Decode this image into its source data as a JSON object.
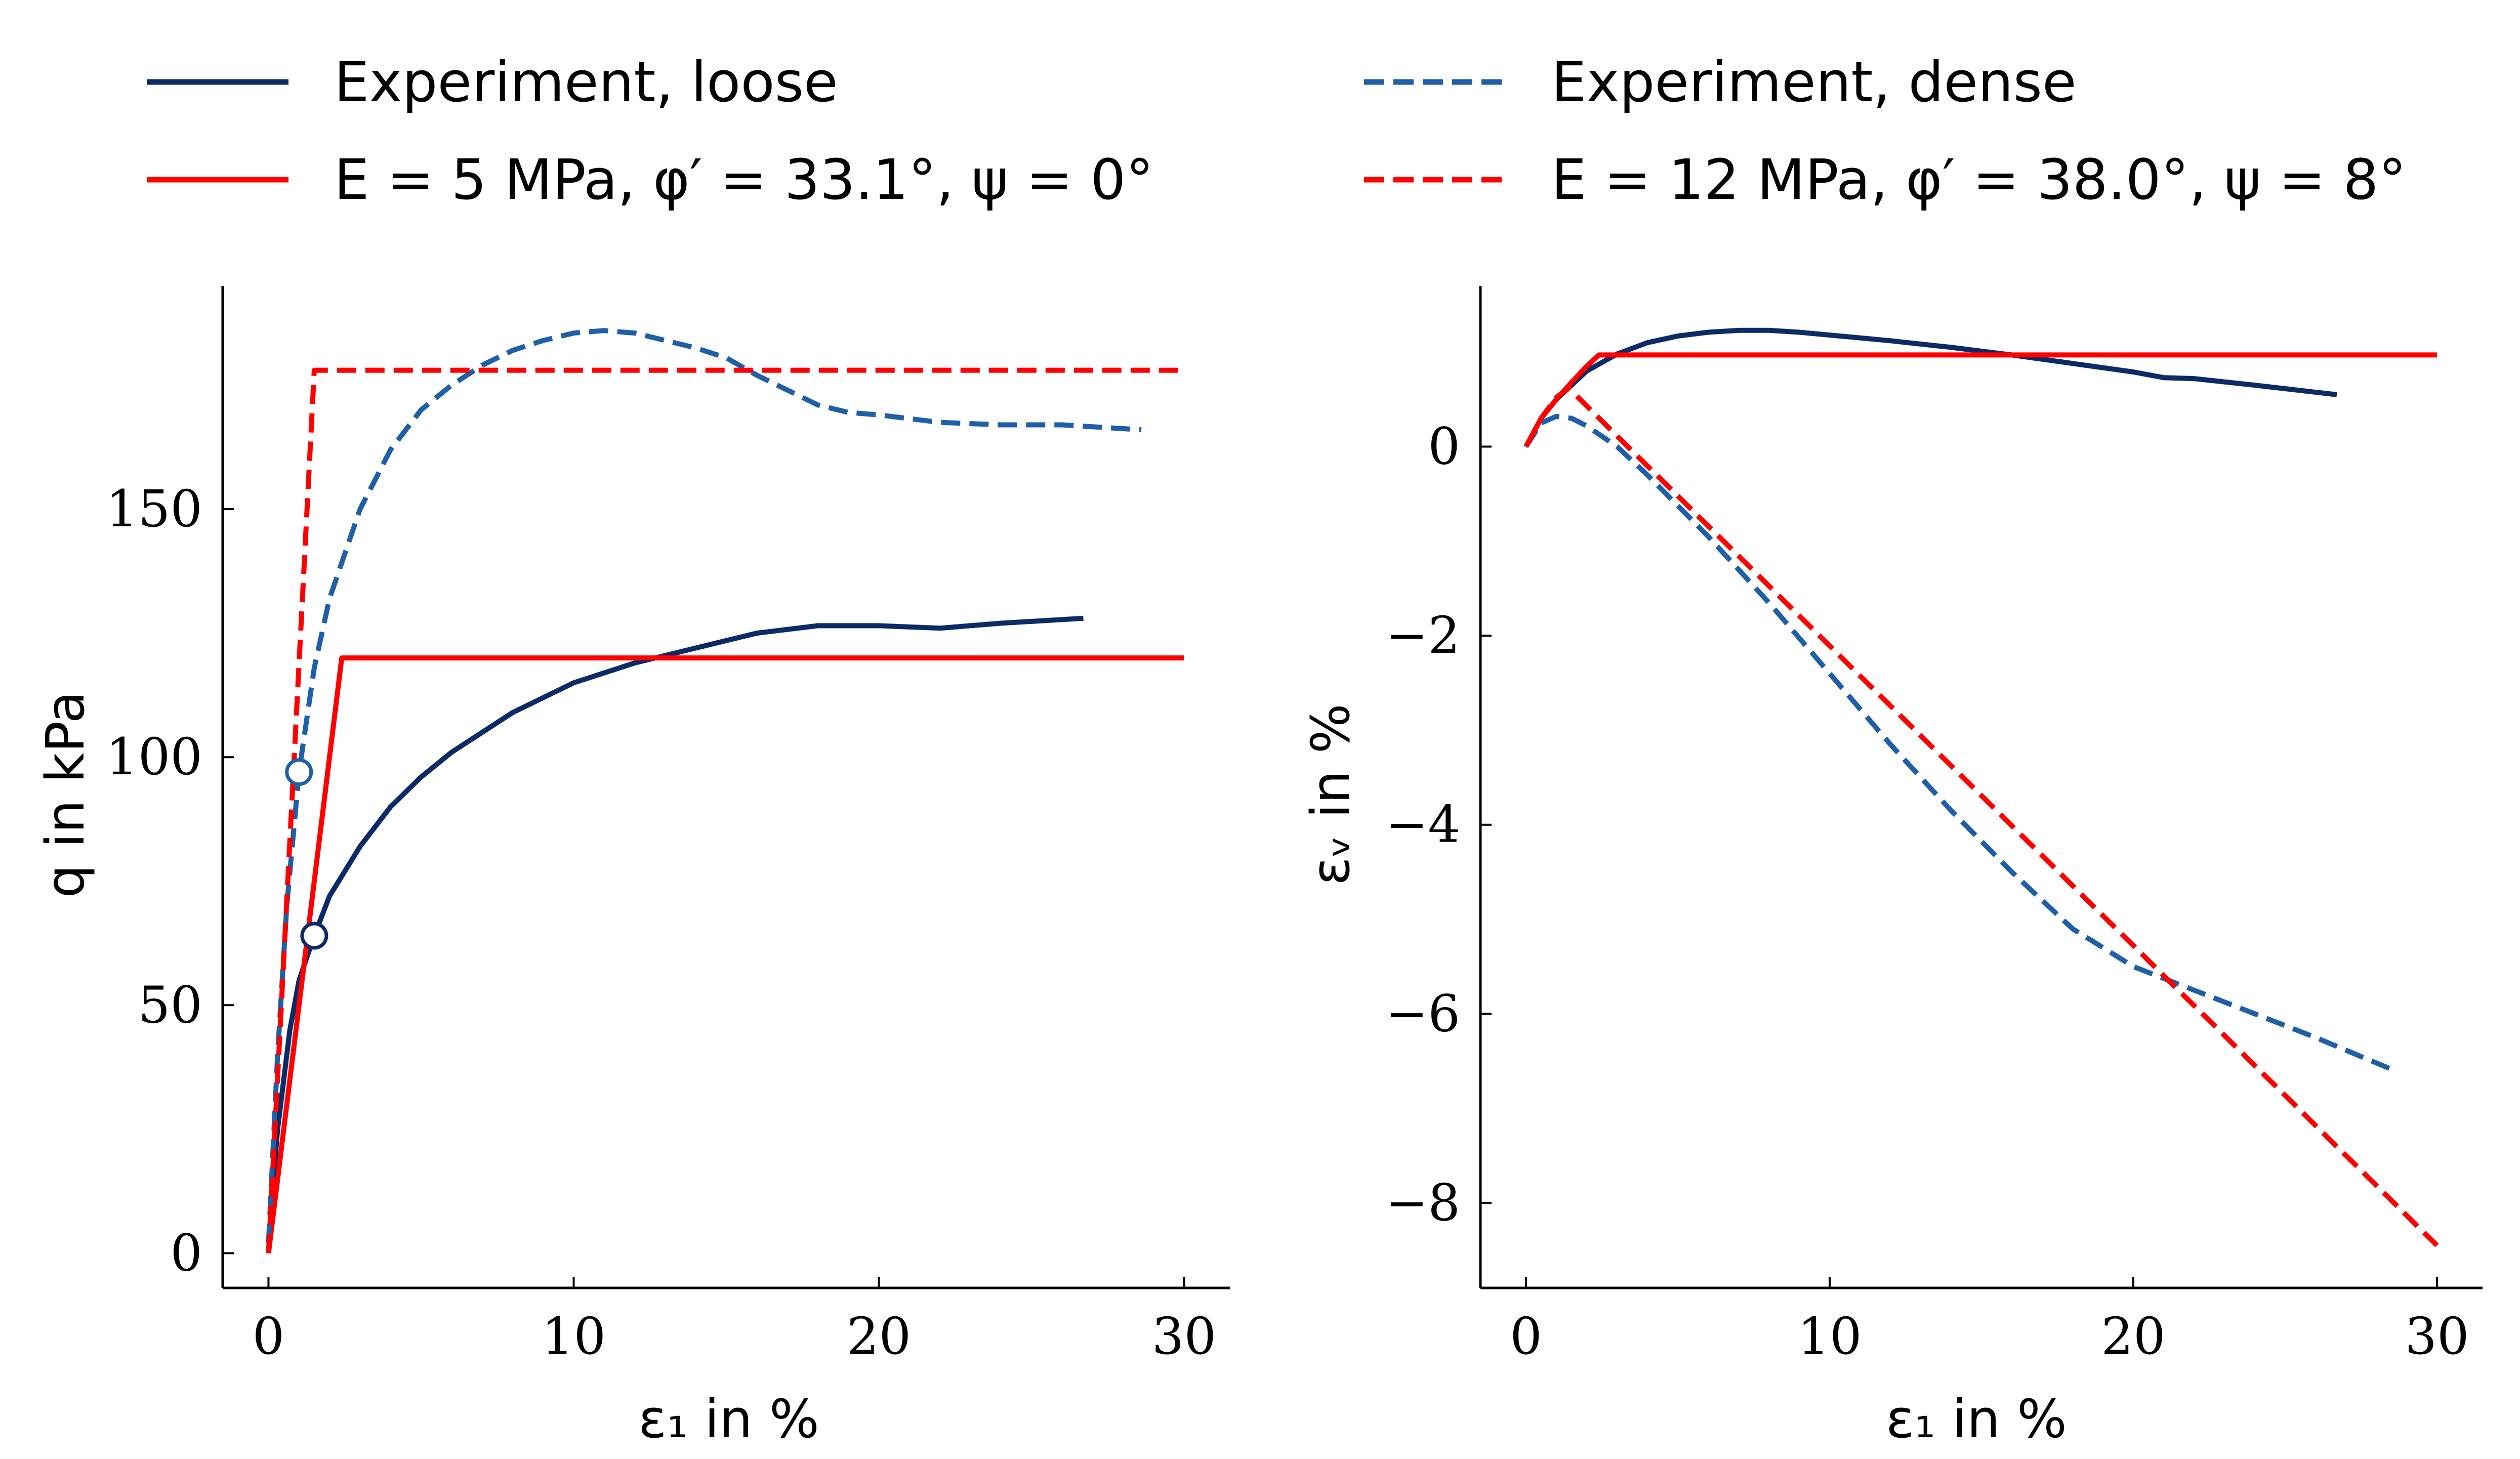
{
  "legend": {
    "entries": [
      {
        "label": "Experiment, loose",
        "color": "#0b2a66",
        "dash": "solid"
      },
      {
        "label": "E = 5 MPa, φ′ = 33.1°, ψ = 0°",
        "color": "#ff0000",
        "dash": "solid"
      },
      {
        "label": "Experiment, dense",
        "color": "#1f5fa8",
        "dash": "dashed"
      },
      {
        "label": "E = 12 MPa, φ′ = 38.0°, ψ = 8°",
        "color": "#ff0000",
        "dash": "dashed"
      }
    ]
  },
  "chart_data": [
    {
      "type": "line",
      "xlabel": "ε₁ in %",
      "ylabel": "q in kPa",
      "xlim": [
        -1.5,
        31.5
      ],
      "ylim": [
        -7,
        195
      ],
      "xticks": [
        "0",
        "10",
        "20",
        "30"
      ],
      "xtick_values": [
        0,
        10,
        20,
        30
      ],
      "yticks": [
        "0",
        "50",
        "100",
        "150"
      ],
      "ytick_values": [
        0,
        50,
        100,
        150
      ],
      "series": [
        {
          "name": "Experiment, loose",
          "color": "#0b2a66",
          "dash": "solid",
          "x": [
            0,
            0.3,
            0.7,
            1.0,
            1.5,
            2,
            3,
            4,
            5,
            6,
            8,
            10,
            12,
            14,
            16,
            18,
            20,
            22,
            24,
            26.7
          ],
          "y": [
            2,
            25,
            45,
            55,
            64,
            72,
            82,
            90,
            96,
            101,
            109,
            115,
            119,
            122,
            125,
            126.5,
            126.5,
            126,
            127,
            128
          ]
        },
        {
          "name": "E = 5 MPa, φ′ = 33.1°, ψ = 0°",
          "color": "#ff0000",
          "dash": "solid",
          "x": [
            0,
            2.4,
            30
          ],
          "y": [
            0,
            120,
            120
          ]
        },
        {
          "name": "Experiment, dense",
          "color": "#1f5fa8",
          "dash": "dashed",
          "x": [
            0,
            0.3,
            0.6,
            1.0,
            1.5,
            2,
            3,
            4,
            5,
            6,
            7,
            8,
            9,
            10,
            11,
            12,
            13,
            14,
            15,
            16,
            17,
            18,
            19,
            20,
            22,
            24,
            26,
            28.6
          ],
          "y": [
            2,
            40,
            70,
            97,
            118,
            132,
            150,
            162,
            170,
            175,
            179,
            182,
            184,
            185.5,
            186,
            185.5,
            184,
            182.5,
            180.5,
            177,
            174,
            171,
            169.5,
            169,
            167.5,
            167,
            167,
            166
          ]
        },
        {
          "name": "E = 12 MPa, φ′ = 38.0°, ψ = 8°",
          "color": "#ff0000",
          "dash": "dashed",
          "x": [
            0,
            1.5,
            30
          ],
          "y": [
            0,
            178,
            178
          ]
        }
      ],
      "markers": [
        {
          "x": 1.0,
          "y": 97,
          "color": "#1f5fa8"
        },
        {
          "x": 1.5,
          "y": 64,
          "color": "#0b2a66"
        }
      ]
    },
    {
      "type": "line",
      "xlabel": "ε₁ in %",
      "ylabel": "εᵥ in %",
      "xlim": [
        -1.5,
        31.5
      ],
      "ylim": [
        -8.9,
        1.7
      ],
      "xticks": [
        "0",
        "10",
        "20",
        "30"
      ],
      "xtick_values": [
        0,
        10,
        20,
        30
      ],
      "yticks": [
        "0",
        "−2",
        "−4",
        "−6",
        "−8"
      ],
      "ytick_values": [
        0,
        -2,
        -4,
        -6,
        -8
      ],
      "series": [
        {
          "name": "Experiment, loose",
          "color": "#0b2a66",
          "dash": "solid",
          "x": [
            0,
            0.5,
            1,
            1.5,
            2,
            3,
            4,
            5,
            6,
            7,
            8,
            9,
            10,
            12,
            14,
            16,
            18,
            20,
            21,
            22,
            24,
            26.7
          ],
          "y": [
            0,
            0.3,
            0.5,
            0.65,
            0.8,
            0.98,
            1.1,
            1.17,
            1.21,
            1.23,
            1.23,
            1.21,
            1.18,
            1.12,
            1.05,
            0.97,
            0.88,
            0.79,
            0.73,
            0.72,
            0.65,
            0.55
          ]
        },
        {
          "name": "E = 5 MPa, φ′ = 33.1°, ψ = 0°",
          "color": "#ff0000",
          "dash": "solid",
          "x": [
            0,
            0.5,
            1,
            1.5,
            2,
            2.4,
            30
          ],
          "y": [
            0,
            0.3,
            0.5,
            0.68,
            0.85,
            0.97,
            0.97
          ]
        },
        {
          "name": "Experiment, dense",
          "color": "#1f5fa8",
          "dash": "dashed",
          "x": [
            0,
            0.5,
            1,
            1.5,
            2,
            3,
            4,
            6,
            8,
            10,
            12,
            14,
            16,
            18,
            20,
            22,
            24,
            26,
            28.6
          ],
          "y": [
            0,
            0.25,
            0.32,
            0.3,
            0.22,
            0,
            -0.3,
            -0.95,
            -1.65,
            -2.4,
            -3.15,
            -3.85,
            -4.5,
            -5.1,
            -5.5,
            -5.75,
            -6.0,
            -6.25,
            -6.6
          ]
        },
        {
          "name": "E = 12 MPa, φ′ = 38.0°, ψ = 8°",
          "color": "#ff0000",
          "dash": "dashed",
          "x": [
            0,
            0.5,
            1,
            1.4,
            30
          ],
          "y": [
            0,
            0.3,
            0.52,
            0.62,
            -8.45
          ]
        }
      ]
    }
  ]
}
